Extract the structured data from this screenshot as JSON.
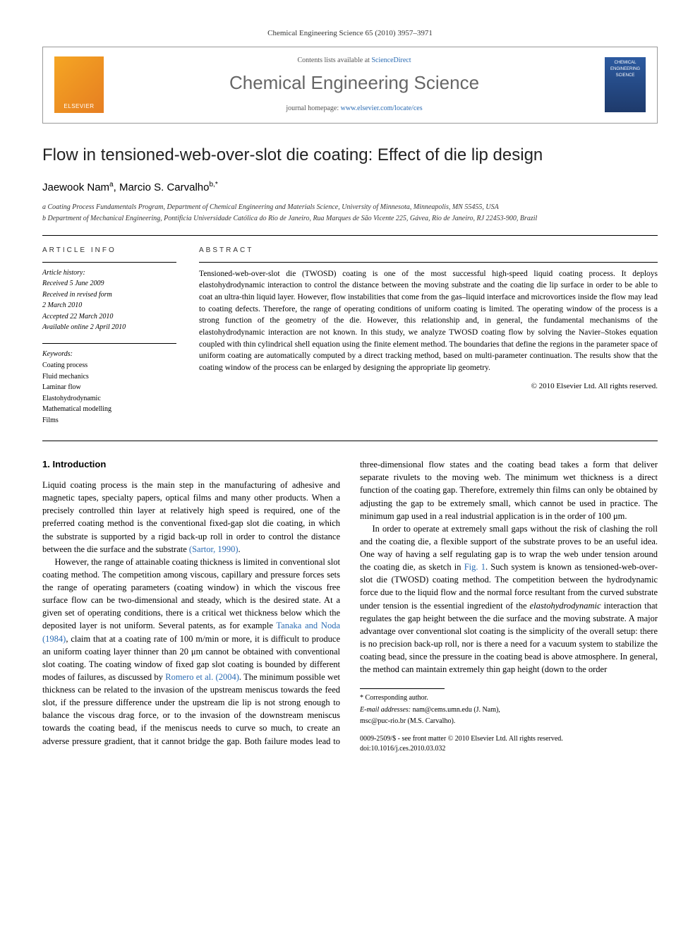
{
  "running_head": "Chemical Engineering Science 65 (2010) 3957–3971",
  "header": {
    "publisher": "ELSEVIER",
    "contents_prefix": "Contents lists available at ",
    "contents_link": "ScienceDirect",
    "journal": "Chemical Engineering Science",
    "homepage_prefix": "journal homepage: ",
    "homepage_link": "www.elsevier.com/locate/ces",
    "cover_label": "CHEMICAL ENGINEERING SCIENCE"
  },
  "title": "Flow in tensioned-web-over-slot die coating: Effect of die lip design",
  "authors_html": "Jaewook Nam<sup>a</sup>, Marcio S. Carvalho<sup>b,*</sup>",
  "affiliations": [
    "a Coating Process Fundamentals Program, Department of Chemical Engineering and Materials Science, University of Minnesota, Minneapolis, MN 55455, USA",
    "b Department of Mechanical Engineering, Pontificia Universidade Católica do Rio de Janeiro, Rua Marques de São Vicente 225, Gávea, Rio de Janeiro, RJ 22453-900, Brazil"
  ],
  "article_info": {
    "heading": "ARTICLE INFO",
    "history_head": "Article history:",
    "history": [
      "Received 5 June 2009",
      "Received in revised form",
      "2 March 2010",
      "Accepted 22 March 2010",
      "Available online 2 April 2010"
    ],
    "keywords_head": "Keywords:",
    "keywords": [
      "Coating process",
      "Fluid mechanics",
      "Laminar flow",
      "Elastohydrodynamic",
      "Mathematical modelling",
      "Films"
    ]
  },
  "abstract": {
    "heading": "ABSTRACT",
    "text": "Tensioned-web-over-slot die (TWOSD) coating is one of the most successful high-speed liquid coating process. It deploys elastohydrodynamic interaction to control the distance between the moving substrate and the coating die lip surface in order to be able to coat an ultra-thin liquid layer. However, flow instabilities that come from the gas–liquid interface and microvortices inside the flow may lead to coating defects. Therefore, the range of operating conditions of uniform coating is limited. The operating window of the process is a strong function of the geometry of the die. However, this relationship and, in general, the fundamental mechanisms of the elastohydrodynamic interaction are not known. In this study, we analyze TWOSD coating flow by solving the Navier–Stokes equation coupled with thin cylindrical shell equation using the finite element method. The boundaries that define the regions in the parameter space of uniform coating are automatically computed by a direct tracking method, based on multi-parameter continuation. The results show that the coating window of the process can be enlarged by designing the appropriate lip geometry.",
    "copyright": "© 2010 Elsevier Ltd. All rights reserved."
  },
  "body": {
    "section_heading": "1. Introduction",
    "p1": "Liquid coating process is the main step in the manufacturing of adhesive and magnetic tapes, specialty papers, optical films and many other products. When a precisely controlled thin layer at relatively high speed is required, one of the preferred coating method is the conventional fixed-gap slot die coating, in which the substrate is supported by a rigid back-up roll in order to control the distance between the die surface and the substrate ",
    "p1_link": "(Sartor, 1990)",
    "p1_tail": ".",
    "p2a": "However, the range of attainable coating thickness is limited in conventional slot coating method. The competition among viscous, capillary and pressure forces sets the range of operating parameters (coating window) in which the viscous free surface flow can be two-dimensional and steady, which is the desired state. At a given set of operating conditions, there is a critical wet thickness below which the deposited layer is not uniform. Several patents, as for example ",
    "p2_link1": "Tanaka and Noda (1984)",
    "p2b": ", claim that at a coating rate of 100 m/min or more, it is difficult to produce an uniform coating layer thinner than 20 μm cannot be obtained with conventional slot coating. The coating window of fixed gap slot coating is bounded by different modes of failures, as discussed by ",
    "p2_link2": "Romero et al. (2004)",
    "p2c": ". The minimum possible wet thickness can be related to the invasion of the upstream meniscus towards the feed slot, if the pressure difference under the upstream die lip is not strong enough to balance the viscous drag force, or to the invasion of the downstream meniscus towards the coating bead, if the meniscus needs to curve so much, to create an adverse pressure gradient, that it cannot bridge the gap. Both failure modes lead to three-dimensional flow states and the coating bead takes a form that deliver separate rivulets to the moving web. The minimum wet thickness is a direct function of the coating gap. Therefore, extremely thin films can only be obtained by adjusting the gap to be extremely small, which cannot be used in practice. The minimum gap used in a real industrial application is in the order of 100 μm.",
    "p3a": "In order to operate at extremely small gaps without the risk of clashing the roll and the coating die, a flexible support of the substrate proves to be an useful idea. One way of having a self regulating gap is to wrap the web under tension around the coating die, as sketch in ",
    "p3_link": "Fig. 1",
    "p3b": ". Such system is known as tensioned-web-over-slot die (TWOSD) coating method. The competition between the hydrodynamic force due to the liquid flow and the normal force resultant from the curved substrate under tension is the essential ingredient of the elastohydrodynamic interaction that regulates the gap height between the die surface and the moving substrate. A major advantage over conventional slot coating is the simplicity of the overall setup: there is no precision back-up roll, nor is there a need for a vacuum system to stabilize the coating bead, since the pressure in the coating bead is above atmosphere. In general, the method can maintain extremely thin gap height (down to the order",
    "p3_italic": "elastohydrodynamic"
  },
  "footnotes": {
    "corr": "* Corresponding author.",
    "email_label": "E-mail addresses:",
    "email1": "nam@cems.umn.edu (J. Nam),",
    "email2": "msc@puc-rio.br (M.S. Carvalho).",
    "front_matter": "0009-2509/$ - see front matter © 2010 Elsevier Ltd. All rights reserved.",
    "doi": "doi:10.1016/j.ces.2010.03.032"
  },
  "colors": {
    "link": "#2a6bb3",
    "text": "#000000",
    "header_rule": "#999999"
  }
}
